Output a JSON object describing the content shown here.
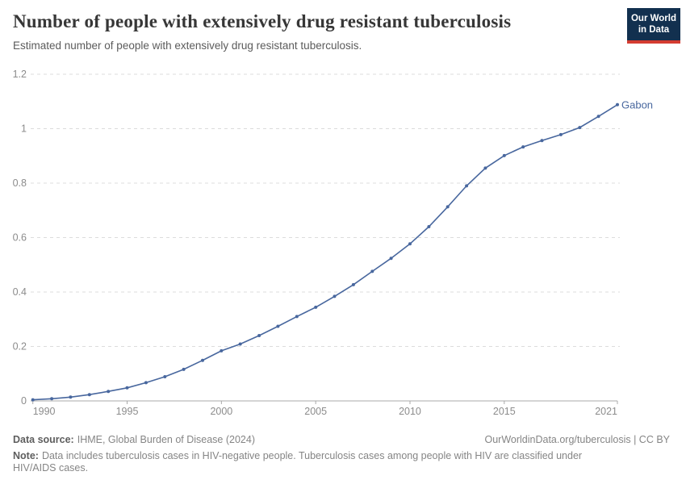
{
  "header": {
    "title": "Number of people with extensively drug resistant tuberculosis",
    "subtitle": "Estimated number of people with extensively drug resistant tuberculosis.",
    "logo": {
      "line1": "Our World",
      "line2": "in Data",
      "bg_color": "#12304f",
      "bar_color": "#d43c31"
    }
  },
  "chart_data": {
    "type": "line",
    "title": "Number of people with extensively drug resistant tuberculosis",
    "xlabel": "",
    "ylabel": "",
    "xlim": [
      1990,
      2021
    ],
    "ylim": [
      0,
      1.2
    ],
    "grid": "horizontal-dashed",
    "legend_position": "end-of-line-label",
    "x_ticks": [
      1990,
      1995,
      2000,
      2005,
      2010,
      2015,
      2021
    ],
    "y_ticks": [
      0,
      0.2,
      0.4,
      0.6,
      0.8,
      1,
      1.2
    ],
    "x": [
      1990,
      1991,
      1992,
      1993,
      1994,
      1995,
      1996,
      1997,
      1998,
      1999,
      2000,
      2001,
      2002,
      2003,
      2004,
      2005,
      2006,
      2007,
      2008,
      2009,
      2010,
      2011,
      2012,
      2013,
      2014,
      2015,
      2016,
      2017,
      2018,
      2019,
      2020,
      2021
    ],
    "series": [
      {
        "name": "Gabon",
        "color": "#48679e",
        "values": [
          0.004,
          0.008,
          0.014,
          0.023,
          0.035,
          0.048,
          0.067,
          0.089,
          0.116,
          0.149,
          0.184,
          0.209,
          0.24,
          0.274,
          0.31,
          0.344,
          0.384,
          0.427,
          0.476,
          0.524,
          0.577,
          0.64,
          0.713,
          0.79,
          0.855,
          0.901,
          0.933,
          0.956,
          0.978,
          1.004,
          1.045,
          1.088
        ]
      }
    ],
    "colors": {
      "gridline": "#dcdcdc",
      "axis_line": "#a8a8a8",
      "tick_label": "#8c8c8c"
    }
  },
  "footer": {
    "datasource_label": "Data source:",
    "datasource_value": "IHME, Global Burden of Disease (2024)",
    "rights": "OurWorldinData.org/tuberculosis | CC BY",
    "note_label": "Note:",
    "note_value": "Data includes tuberculosis cases in HIV-negative people. Tuberculosis cases among people with HIV are classified under HIV/AIDS cases."
  }
}
